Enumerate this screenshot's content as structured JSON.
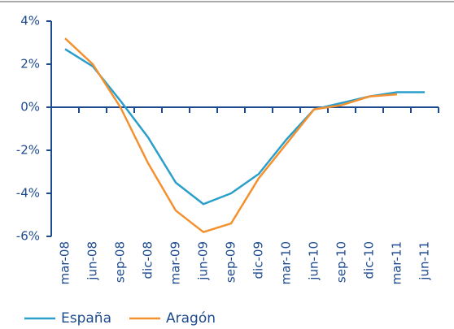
{
  "chart_data": {
    "type": "line",
    "categories": [
      "mar-08",
      "jun-08",
      "sep-08",
      "dic-08",
      "mar-09",
      "jun-09",
      "sep-09",
      "dic-09",
      "mar-10",
      "jun-10",
      "sep-10",
      "dic-10",
      "mar-11",
      "jun-11"
    ],
    "series": [
      {
        "name": "España",
        "color": "#2a9fcb",
        "values": [
          2.7,
          1.9,
          0.3,
          -1.4,
          -3.5,
          -4.5,
          -4.0,
          -3.1,
          -1.5,
          -0.1,
          0.2,
          0.5,
          0.7,
          0.7
        ]
      },
      {
        "name": "Aragón",
        "color": "#f39130",
        "values": [
          3.2,
          2.0,
          0.0,
          -2.6,
          -4.8,
          -5.8,
          -5.4,
          -3.3,
          -1.7,
          -0.1,
          0.1,
          0.5,
          0.6,
          null
        ]
      }
    ],
    "ylim": [
      -6,
      4
    ],
    "yticks": [
      {
        "value": 4,
        "label": "4%"
      },
      {
        "value": 2,
        "label": "2%"
      },
      {
        "value": 0,
        "label": "0%"
      },
      {
        "value": -2,
        "label": "-2%"
      },
      {
        "value": -4,
        "label": "-4%"
      },
      {
        "value": -6,
        "label": "-6%"
      }
    ],
    "grid": false
  }
}
